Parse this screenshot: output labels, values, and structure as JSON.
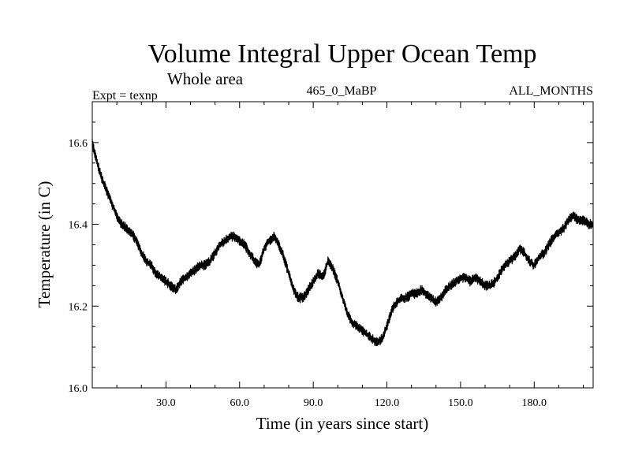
{
  "chart_data": {
    "type": "line",
    "title": "Volume Integral Upper Ocean Temp",
    "subtitle": "Whole area",
    "annotations": {
      "left": "Expt = texnp",
      "center": "465_0_MaBP",
      "right": "ALL_MONTHS"
    },
    "xlabel": "Time (in years since start)",
    "ylabel": "Temperature (in C)",
    "xlim": [
      0,
      204
    ],
    "ylim": [
      16.0,
      16.7
    ],
    "xticks": [
      30,
      60,
      90,
      120,
      150,
      180
    ],
    "xtick_labels": [
      "30.0",
      "60.0",
      "90.0",
      "120.0",
      "150.0",
      "180.0"
    ],
    "yticks": [
      16.0,
      16.2,
      16.4,
      16.6
    ],
    "ytick_labels": [
      "16.0",
      "16.2",
      "16.4",
      "16.6"
    ],
    "grid": false,
    "series": [
      {
        "name": "Temperature",
        "color": "#000000",
        "x": [
          0,
          2,
          4,
          6,
          8,
          10,
          12,
          14,
          16,
          18,
          20,
          22,
          24,
          26,
          28,
          30,
          32,
          34,
          36,
          38,
          40,
          42,
          44,
          46,
          48,
          50,
          52,
          54,
          56,
          58,
          60,
          62,
          64,
          66,
          68,
          70,
          72,
          74,
          76,
          78,
          80,
          82,
          84,
          86,
          88,
          90,
          92,
          94,
          96,
          98,
          100,
          102,
          104,
          106,
          108,
          110,
          112,
          114,
          116,
          118,
          120,
          122,
          124,
          126,
          128,
          130,
          132,
          134,
          136,
          138,
          140,
          142,
          144,
          146,
          148,
          150,
          152,
          154,
          156,
          158,
          160,
          162,
          164,
          166,
          168,
          170,
          172,
          174,
          176,
          178,
          180,
          182,
          184,
          186,
          188,
          190,
          192,
          194,
          196,
          198,
          200,
          202,
          204
        ],
        "values": [
          16.6,
          16.55,
          16.51,
          16.48,
          16.45,
          16.42,
          16.4,
          16.39,
          16.38,
          16.36,
          16.33,
          16.31,
          16.3,
          16.28,
          16.27,
          16.26,
          16.25,
          16.24,
          16.26,
          16.27,
          16.28,
          16.29,
          16.3,
          16.3,
          16.31,
          16.33,
          16.35,
          16.36,
          16.37,
          16.37,
          16.36,
          16.35,
          16.33,
          16.31,
          16.3,
          16.34,
          16.36,
          16.37,
          16.35,
          16.32,
          16.28,
          16.24,
          16.22,
          16.22,
          16.24,
          16.26,
          16.28,
          16.27,
          16.31,
          16.29,
          16.26,
          16.22,
          16.18,
          16.16,
          16.15,
          16.14,
          16.13,
          16.12,
          16.11,
          16.12,
          16.15,
          16.19,
          16.21,
          16.22,
          16.22,
          16.23,
          16.23,
          16.24,
          16.23,
          16.22,
          16.21,
          16.22,
          16.24,
          16.25,
          16.26,
          16.27,
          16.27,
          16.26,
          16.27,
          16.26,
          16.25,
          16.25,
          16.26,
          16.28,
          16.3,
          16.31,
          16.32,
          16.34,
          16.33,
          16.31,
          16.3,
          16.32,
          16.33,
          16.35,
          16.37,
          16.38,
          16.39,
          16.41,
          16.42,
          16.41,
          16.41,
          16.4,
          16.4
        ],
        "noise_amplitude": 0.008
      }
    ]
  }
}
